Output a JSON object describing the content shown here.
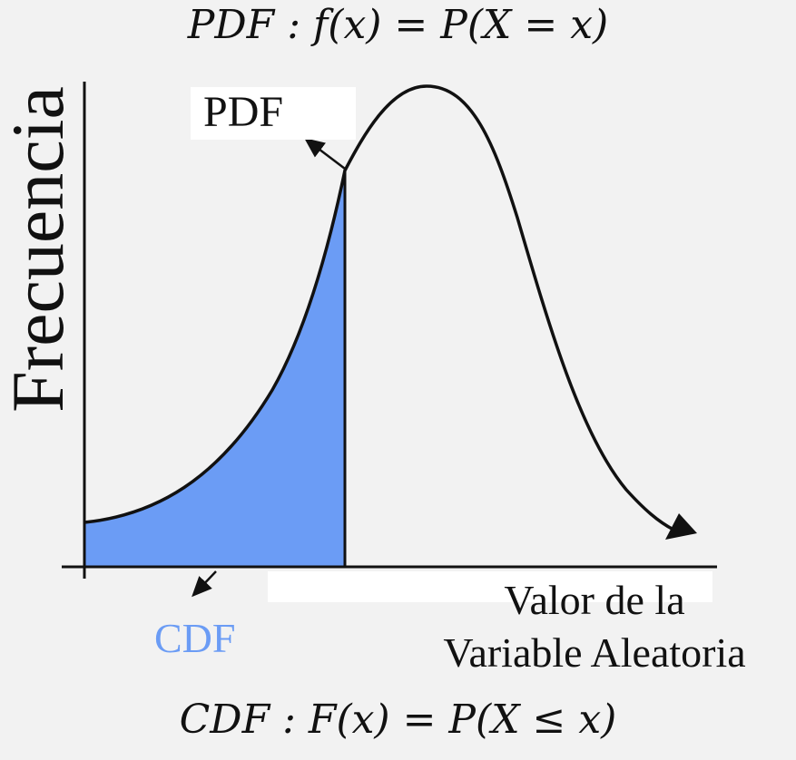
{
  "formulas": {
    "pdf": "PDF :  f(x) = P(X = x)",
    "cdf": "CDF :  F(x) = P(X ≤ x)"
  },
  "labels": {
    "y_axis": "Frecuencia",
    "pdf_curve": "PDF",
    "cdf_area": "CDF",
    "x_axis_line1": "Valor de la",
    "x_axis_line2": "Variable Aleatoria"
  },
  "colors": {
    "cdf_fill": "#6b9cf5",
    "cdf_text": "#6b9cf5",
    "curve": "#111111",
    "background": "#f2f2f2"
  },
  "icons": {
    "pdf_pointer": "arrow-up-left-icon",
    "cdf_pointer": "arrow-down-left-icon",
    "curve_end": "arrowhead-icon"
  }
}
